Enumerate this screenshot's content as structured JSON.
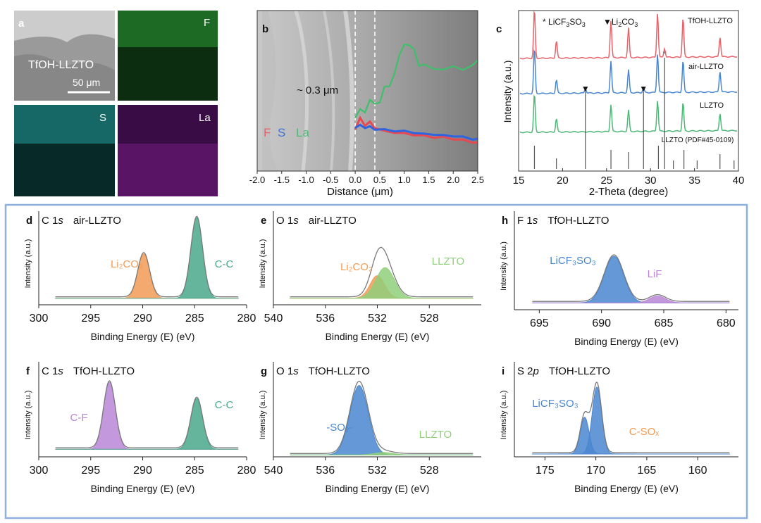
{
  "colors": {
    "red": "#e8626a",
    "blue": "#4a86d0",
    "green": "#4fb878",
    "orange": "#f29b56",
    "teal": "#4aa88c",
    "purple": "#b986d6",
    "lightgreen": "#8fcf7a",
    "envelope": "#7a7a7a",
    "frame": "#8db0dc"
  },
  "panel_a": {
    "letter": "a",
    "sample": "TfOH-LLZTO",
    "scalebar": "50 μm",
    "maps": [
      "F",
      "S",
      "La"
    ]
  },
  "chart_data": [
    {
      "id": "b",
      "type": "line",
      "letter": "b",
      "annotation": "~ 0.3 μm",
      "xlabel": "Distance (μm)",
      "xlim": [
        -2.0,
        2.5
      ],
      "xticks": [
        "-2.0",
        "-1.5",
        "-1.0",
        "-0.5",
        "0.0",
        "0.5",
        "1.0",
        "1.5",
        "2.0",
        "2.5"
      ],
      "legend": [
        "F",
        "S",
        "La"
      ],
      "dashed_x": [
        0.0,
        0.4
      ],
      "series": [
        {
          "name": "F",
          "x": [
            0.0,
            0.1,
            0.2,
            0.3,
            0.4,
            0.6,
            0.8,
            1.0,
            1.2,
            1.4,
            1.6,
            1.8,
            2.0,
            2.2,
            2.4,
            2.5
          ],
          "y": [
            0.4,
            0.55,
            0.45,
            0.5,
            0.42,
            0.38,
            0.36,
            0.35,
            0.33,
            0.32,
            0.3,
            0.3,
            0.28,
            0.26,
            0.24,
            0.22
          ]
        },
        {
          "name": "S",
          "x": [
            0.0,
            0.1,
            0.2,
            0.3,
            0.4,
            0.6,
            0.8,
            1.0,
            1.2,
            1.4,
            1.6,
            1.8,
            2.0,
            2.2,
            2.4,
            2.5
          ],
          "y": [
            0.42,
            0.46,
            0.42,
            0.44,
            0.4,
            0.4,
            0.38,
            0.38,
            0.36,
            0.34,
            0.34,
            0.32,
            0.32,
            0.3,
            0.28,
            0.27
          ]
        },
        {
          "name": "La",
          "x": [
            0.0,
            0.1,
            0.2,
            0.3,
            0.4,
            0.5,
            0.6,
            0.7,
            0.8,
            0.9,
            1.0,
            1.1,
            1.2,
            1.3,
            1.4,
            1.6,
            1.8,
            2.0,
            2.2,
            2.4,
            2.5
          ],
          "y": [
            0.55,
            0.62,
            0.68,
            0.75,
            0.72,
            0.8,
            0.9,
            0.98,
            1.15,
            1.3,
            1.55,
            1.48,
            1.4,
            1.28,
            1.2,
            1.18,
            1.22,
            1.16,
            1.2,
            1.25,
            1.24
          ]
        }
      ]
    },
    {
      "id": "c",
      "type": "line",
      "letter": "c",
      "xlabel": "2-Theta (degree)",
      "ylabel": "Intensity (a.u.)",
      "xlim": [
        15,
        40
      ],
      "xticks": [
        "15",
        "20",
        "25",
        "30",
        "35",
        "40"
      ],
      "legend_star": "LiCF3SO3",
      "legend_triangle": "Li2CO3",
      "series": [
        {
          "name": "TfOH-LLZTO",
          "peaks": [
            16.8,
            19.3,
            25.5,
            27.5,
            30.8,
            33.7,
            37.9
          ],
          "heights": [
            1.0,
            0.35,
            0.75,
            0.6,
            0.9,
            0.8,
            0.4
          ],
          "star_peaks": [
            31.6
          ]
        },
        {
          "name": "air-LLZTO",
          "peaks": [
            16.8,
            19.3,
            25.5,
            27.5,
            30.8,
            33.7,
            37.9
          ],
          "heights": [
            1.0,
            0.3,
            0.7,
            0.5,
            0.85,
            0.7,
            0.45
          ],
          "triangle_peaks": [
            22.6,
            29.2
          ]
        },
        {
          "name": "LLZTO",
          "peaks": [
            16.8,
            19.3,
            25.5,
            27.5,
            30.8,
            33.7,
            37.9
          ],
          "heights": [
            1.0,
            0.35,
            0.7,
            0.55,
            0.8,
            0.75,
            0.45
          ]
        },
        {
          "name": "LLZTO (PDF#45-0109)",
          "type": "stick",
          "peaks": [
            16.8,
            19.3,
            25.5,
            27.5,
            30.9,
            32.6,
            33.8,
            35.3,
            37.9,
            39.5
          ],
          "heights": [
            0.55,
            0.25,
            0.45,
            0.4,
            0.55,
            0.2,
            0.45,
            0.2,
            0.35,
            0.2
          ]
        }
      ]
    },
    {
      "id": "d",
      "type": "area",
      "letter": "d",
      "title_element": "C 1",
      "title_orbital": "s",
      "title_sample": "air-LLZTO",
      "xlabel": "Binding Energy (E) (eV)",
      "ylabel": "Intensity (a.u.)",
      "xlim": [
        300,
        280
      ],
      "xticks": [
        "300",
        "295",
        "290",
        "285",
        "280"
      ],
      "components": [
        {
          "label": "Li₂CO₃",
          "center": 289.9,
          "height": 0.55,
          "width": 0.8,
          "color": "orange"
        },
        {
          "label": "C-C",
          "center": 284.8,
          "height": 1.0,
          "width": 0.8,
          "color": "teal"
        }
      ]
    },
    {
      "id": "e",
      "type": "area",
      "letter": "e",
      "title_element": "O 1",
      "title_orbital": "s",
      "title_sample": "air-LLZTO",
      "xlabel": "Binding Energy (E) (eV)",
      "ylabel": "Intensity (a.u.)",
      "xlim": [
        540,
        524
      ],
      "xticks": [
        "540",
        "536",
        "532",
        "528"
      ],
      "components": [
        {
          "label": "Li₂CO₃",
          "center": 532.0,
          "height": 0.28,
          "width": 0.8,
          "color": "orange"
        },
        {
          "label": "LLZTO",
          "center": 531.4,
          "height": 0.38,
          "width": 1.0,
          "color": "lightgreen"
        }
      ]
    },
    {
      "id": "h",
      "type": "area",
      "letter": "h",
      "title_element": "F 1",
      "title_orbital": "s",
      "title_sample": "TfOH-LLZTO",
      "xlabel": "Binding Energy (E) (eV)",
      "ylabel": "Intensity (a.u.)",
      "xlim": [
        697,
        679
      ],
      "xticks": [
        "695",
        "690",
        "685",
        "680"
      ],
      "components": [
        {
          "label": "LiCF₃SO₃",
          "center": 689.0,
          "height": 0.55,
          "width": 1.1,
          "color": "blue"
        },
        {
          "label": "LiF",
          "center": 685.5,
          "height": 0.08,
          "width": 0.9,
          "color": "purple"
        }
      ]
    },
    {
      "id": "f",
      "type": "area",
      "letter": "f",
      "title_element": "C 1",
      "title_orbital": "s",
      "title_sample": "TfOH-LLZTO",
      "xlabel": "Binding Energy (E) (eV)",
      "ylabel": "Intensity (a.u.)",
      "xlim": [
        300,
        280
      ],
      "xticks": [
        "300",
        "295",
        "290",
        "285",
        "280"
      ],
      "components": [
        {
          "label": "C-F",
          "center": 293.2,
          "height": 0.82,
          "width": 0.8,
          "color": "purple"
        },
        {
          "label": "C-C",
          "center": 284.8,
          "height": 0.62,
          "width": 0.8,
          "color": "teal"
        }
      ]
    },
    {
      "id": "g",
      "type": "area",
      "letter": "g",
      "title_element": "O 1",
      "title_orbital": "s",
      "title_sample": "TfOH-LLZTO",
      "xlabel": "Binding Energy (E) (eV)",
      "ylabel": "Intensity (a.u.)",
      "xlim": [
        540,
        524
      ],
      "xticks": [
        "540",
        "536",
        "532",
        "528"
      ],
      "components": [
        {
          "label": "-SO₂-",
          "center": 533.4,
          "height": 0.85,
          "width": 1.0,
          "color": "blue"
        },
        {
          "label": "LLZTO",
          "center": 531.5,
          "height": 0.03,
          "width": 1.0,
          "color": "lightgreen"
        }
      ]
    },
    {
      "id": "i",
      "type": "area",
      "letter": "i",
      "title_element": "S 2",
      "title_orbital": "p",
      "title_sample": "TfOH-LLZTO",
      "xlabel": "Binding Energy (E) (eV)",
      "ylabel": "Intensity (a.u.)",
      "xlim": [
        178,
        156
      ],
      "xticks": [
        "175",
        "170",
        "165",
        "160"
      ],
      "components": [
        {
          "label": "LiCF₃SO₃",
          "center": 171.1,
          "height": 0.45,
          "width": 0.6,
          "color": "blue"
        },
        {
          "label": "",
          "center": 169.9,
          "height": 0.82,
          "width": 0.65,
          "color": "blue"
        },
        {
          "label": "C-SOₓ",
          "center": 167.0,
          "height": 0.0,
          "width": 0.6,
          "color": "orange"
        }
      ]
    }
  ]
}
